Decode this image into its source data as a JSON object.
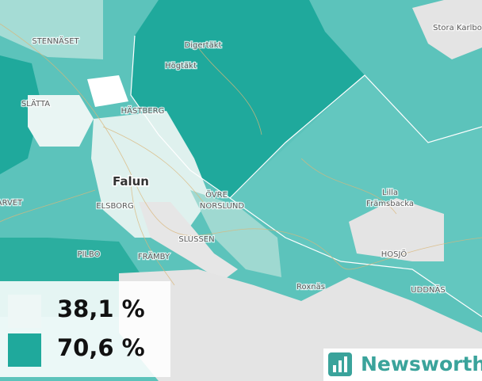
{
  "places": [
    {
      "label": "STENNÄSET"
    },
    {
      "label": "Digertäkt"
    },
    {
      "label": "Högtäkt"
    },
    {
      "label": "SLÄTTA"
    },
    {
      "label": "HÄSTBERG"
    },
    {
      "label": "ÖVRE"
    },
    {
      "label": "NORSLUND"
    },
    {
      "label": "ELSBORG"
    },
    {
      "label": "ARVET"
    },
    {
      "label": "Lilla"
    },
    {
      "label": "Främsbacka"
    },
    {
      "label": "HOSJÖ"
    },
    {
      "label": "PILBO"
    },
    {
      "label": "FRÄMBY"
    },
    {
      "label": "SLUSSEN"
    },
    {
      "label": "Roxnäs"
    },
    {
      "label": "UDDNÄS"
    },
    {
      "label": "Stora Karlbo"
    }
  ],
  "town": "Falun",
  "legend": {
    "items": [
      {
        "label": "38,1 %"
      },
      {
        "label": "70,6 %"
      }
    ]
  },
  "logo": {
    "text": "Newsworthy"
  }
}
